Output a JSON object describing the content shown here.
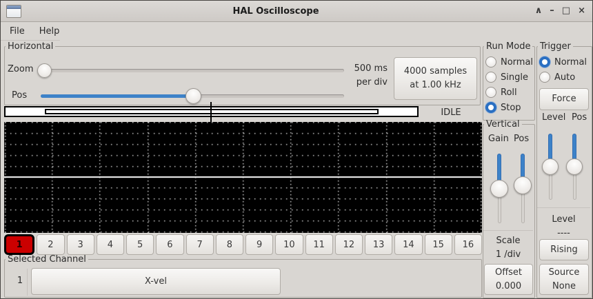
{
  "window": {
    "title": "HAL Oscilloscope",
    "shade": "∧",
    "minimize": "–",
    "maximize": "□",
    "close": "×"
  },
  "menu": {
    "file": "File",
    "help": "Help"
  },
  "horizontal": {
    "label": "Horizontal",
    "zoom_label": "Zoom",
    "pos_label": "Pos",
    "per_div": [
      "500 ms",
      "per div"
    ],
    "samples": [
      "4000 samples",
      "at 1.00 kHz"
    ],
    "status": "IDLE"
  },
  "run_mode": {
    "label": "Run Mode",
    "options": [
      {
        "label": "Normal",
        "selected": false
      },
      {
        "label": "Single",
        "selected": false
      },
      {
        "label": "Roll",
        "selected": false
      },
      {
        "label": "Stop",
        "selected": true
      }
    ]
  },
  "vertical": {
    "label": "Vertical",
    "gain_label": "Gain",
    "pos_label": "Pos",
    "scale_label": "Scale",
    "scale_value": "1 /div",
    "offset_label": "Offset",
    "offset_value": "0.000"
  },
  "trigger": {
    "label": "Trigger",
    "options": [
      {
        "label": "Normal",
        "selected": true
      },
      {
        "label": "Auto",
        "selected": false
      }
    ],
    "force_label": "Force",
    "level_label": "Level",
    "pos_label": "Pos",
    "readout_label": "Level",
    "readout_value": "----",
    "slope_label": "Rising",
    "source_label": "Source",
    "source_value": "None"
  },
  "channels": {
    "labels": [
      "1",
      "2",
      "3",
      "4",
      "5",
      "6",
      "7",
      "8",
      "9",
      "10",
      "11",
      "12",
      "13",
      "14",
      "15",
      "16"
    ],
    "selected": "1"
  },
  "selected_channel": {
    "label": "Selected Channel",
    "number": "1",
    "name": "X-vel"
  },
  "colors": {
    "accent": "#3d82c8",
    "selected_channel_red": "#cb0000",
    "display_bg": "#000000",
    "grid_dot": "#ececec",
    "trace": "#ffffff"
  }
}
